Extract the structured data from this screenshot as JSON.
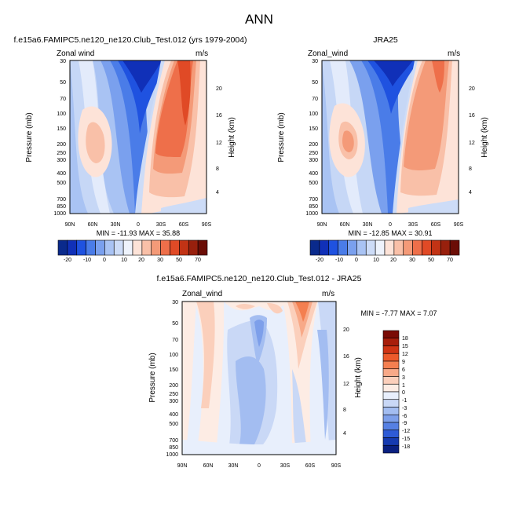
{
  "figure": {
    "title": "ANN"
  },
  "chart_data": [
    {
      "type": "heatmap",
      "title": "f.e15a6.FAMIPC5.ne120_ne120.Club_Test.012 (yrs 1979-2004)",
      "left_label": "Zonal wind",
      "units": "m/s",
      "ylabel": "Pressure (mb)",
      "ylabel_right": "Height (km)",
      "x_ticks": [
        "90N",
        "60N",
        "30N",
        "0",
        "30S",
        "60S",
        "90S"
      ],
      "y_ticks": [
        "30",
        "50",
        "70",
        "100",
        "150",
        "200",
        "250",
        "300",
        "400",
        "500",
        "700",
        "850",
        "1000"
      ],
      "height_ticks": [
        "20",
        "16",
        "12",
        "8",
        "4"
      ],
      "stats": "MIN = -11.93  MAX =  35.88",
      "min": -11.93,
      "max": 35.88,
      "colorbar_labels": [
        "-20",
        "-10",
        "0",
        "10",
        "20",
        "30",
        "50",
        "70"
      ]
    },
    {
      "type": "heatmap",
      "title": "JRA25",
      "left_label": "Zonal_wind",
      "units": "m/s",
      "ylabel": "Pressure (mb)",
      "ylabel_right": "Height (km)",
      "x_ticks": [
        "90N",
        "60N",
        "30N",
        "0",
        "30S",
        "60S",
        "90S"
      ],
      "y_ticks": [
        "30",
        "50",
        "70",
        "100",
        "150",
        "200",
        "250",
        "300",
        "400",
        "500",
        "700",
        "850",
        "1000"
      ],
      "height_ticks": [
        "20",
        "16",
        "12",
        "8",
        "4"
      ],
      "stats": "MIN = -12.85  MAX =  30.91",
      "min": -12.85,
      "max": 30.91,
      "colorbar_labels": [
        "-20",
        "-10",
        "0",
        "10",
        "20",
        "30",
        "50",
        "70"
      ]
    },
    {
      "type": "heatmap",
      "title": "f.e15a6.FAMIPC5.ne120_ne120.Club_Test.012 - JRA25",
      "left_label": "Zonal_wind",
      "units": "m/s",
      "ylabel": "Pressure (mb)",
      "ylabel_right": "Height (km)",
      "x_ticks": [
        "90N",
        "60N",
        "30N",
        "0",
        "30S",
        "60S",
        "90S"
      ],
      "y_ticks": [
        "30",
        "50",
        "70",
        "100",
        "150",
        "200",
        "250",
        "300",
        "400",
        "500",
        "700",
        "850",
        "1000"
      ],
      "height_ticks": [
        "20",
        "16",
        "12",
        "8",
        "4"
      ],
      "stats": "MIN =  -7.77  MAX =   7.07",
      "min": -7.77,
      "max": 7.07,
      "colorbar_labels": [
        "18",
        "15",
        "12",
        "9",
        "6",
        "3",
        "1",
        "0",
        "-1",
        "-3",
        "-6",
        "-9",
        "-12",
        "-15",
        "-18"
      ]
    }
  ],
  "colors": {
    "top_scale": [
      "#0a2a8c",
      "#1030b8",
      "#1f52e0",
      "#4a7ce8",
      "#7aa0ee",
      "#a9c3f3",
      "#cddcf7",
      "#eef3fc",
      "#fde3d8",
      "#f9c0a8",
      "#f49a78",
      "#ee6f4a",
      "#e04a26",
      "#c23315",
      "#98200d",
      "#6b0d06"
    ],
    "diff_scale": [
      "#7a0b05",
      "#a81e0b",
      "#d03414",
      "#ec5a2b",
      "#f47f50",
      "#f8a988",
      "#fbcfbb",
      "#fdece4",
      "#e8effc",
      "#c9d8f6",
      "#a3bdf1",
      "#7d9fea",
      "#5680e3",
      "#2e5bd6",
      "#163bb0",
      "#0a2080"
    ]
  }
}
